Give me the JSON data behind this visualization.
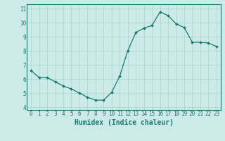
{
  "x": [
    0,
    1,
    2,
    3,
    4,
    5,
    6,
    7,
    8,
    9,
    10,
    11,
    12,
    13,
    14,
    15,
    16,
    17,
    18,
    19,
    20,
    21,
    22,
    23
  ],
  "y": [
    6.6,
    6.1,
    6.1,
    5.8,
    5.5,
    5.3,
    5.0,
    4.7,
    4.5,
    4.5,
    5.05,
    6.2,
    8.0,
    9.3,
    9.6,
    9.8,
    10.75,
    10.5,
    9.9,
    9.65,
    8.6,
    8.6,
    8.55,
    8.3
  ],
  "line_color": "#1a7a6e",
  "marker": "D",
  "marker_size": 2.0,
  "bg_color": "#cceae7",
  "grid_color": "#aad4d0",
  "xlabel": "Humidex (Indice chaleur)",
  "xlim": [
    -0.5,
    23.5
  ],
  "ylim": [
    3.8,
    11.3
  ],
  "xticks": [
    0,
    1,
    2,
    3,
    4,
    5,
    6,
    7,
    8,
    9,
    10,
    11,
    12,
    13,
    14,
    15,
    16,
    17,
    18,
    19,
    20,
    21,
    22,
    23
  ],
  "yticks": [
    4,
    5,
    6,
    7,
    8,
    9,
    10,
    11
  ],
  "tick_color": "#1a7a6e",
  "label_fontsize": 5.5,
  "xlabel_fontsize": 7.0
}
